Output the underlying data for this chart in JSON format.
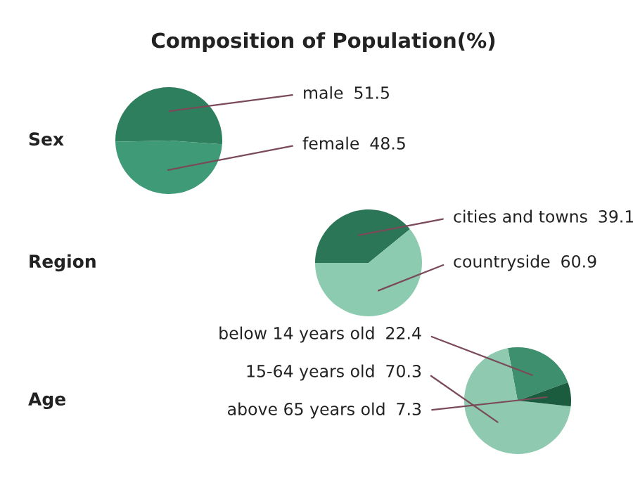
{
  "chart_data": [
    {
      "type": "pie",
      "title": "Composition of Population(%)",
      "ylabel": "Sex",
      "categories": [
        "male",
        "female"
      ],
      "values": [
        51.5,
        48.5
      ],
      "colors": [
        "#2e7f5e",
        "#3f9a78"
      ],
      "data_labels": true
    },
    {
      "type": "pie",
      "ylabel": "Region",
      "categories": [
        "cities and towns",
        "countryside"
      ],
      "values": [
        39.1,
        60.9
      ],
      "colors": [
        "#2b7656",
        "#8ccbb0"
      ],
      "data_labels": true
    },
    {
      "type": "pie",
      "ylabel": "Age",
      "categories": [
        "below 14 years old",
        "15-64 years old",
        "above 65 years old"
      ],
      "values": [
        22.4,
        70.3,
        7.3
      ],
      "colors": [
        "#3e8f6d",
        "#8fcab0",
        "#1b5c3f"
      ],
      "data_labels": true
    }
  ]
}
